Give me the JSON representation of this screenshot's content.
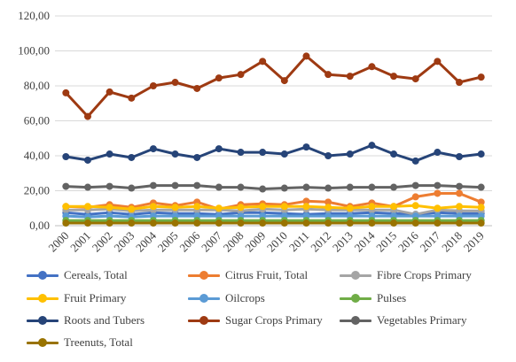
{
  "chart_data": {
    "type": "line",
    "title": "",
    "xlabel": "",
    "ylabel": "",
    "categories": [
      "2000",
      "2001",
      "2002",
      "2003",
      "2004",
      "2005",
      "2006",
      "2007",
      "2008",
      "2009",
      "2010",
      "2011",
      "2012",
      "2013",
      "2014",
      "2015",
      "2016",
      "2017",
      "2018",
      "2019"
    ],
    "ylim": [
      0,
      120
    ],
    "yticks": [
      "0,00",
      "20,00",
      "40,00",
      "60,00",
      "80,00",
      "100,00",
      "120,00"
    ],
    "grid": "horizontal",
    "legend_position": "bottom",
    "series": [
      {
        "name": "Cereals, Total",
        "color": "#4472C4",
        "values": [
          7.5,
          6.5,
          7.5,
          6.5,
          7.5,
          7.0,
          7.0,
          6.5,
          7.5,
          7.5,
          7.0,
          6.5,
          7.0,
          7.0,
          7.5,
          7.0,
          6.5,
          7.5,
          7.0,
          7.0
        ]
      },
      {
        "name": "Citrus Fruit, Total",
        "color": "#ED7D31",
        "values": [
          11.0,
          10.5,
          12.0,
          10.5,
          13.0,
          11.5,
          13.5,
          9.5,
          12.0,
          12.5,
          12.0,
          14.0,
          13.5,
          11.0,
          13.0,
          11.0,
          16.5,
          18.5,
          18.5,
          13.5
        ]
      },
      {
        "name": "Fibre Crops Primary",
        "color": "#A5A5A5",
        "values": [
          9.0,
          9.0,
          9.5,
          8.5,
          9.0,
          9.0,
          9.0,
          9.0,
          8.5,
          9.5,
          9.0,
          9.5,
          9.0,
          9.0,
          9.0,
          9.0,
          6.5,
          9.0,
          8.5,
          8.5
        ]
      },
      {
        "name": "Fruit Primary",
        "color": "#FFC000",
        "values": [
          11.0,
          11.0,
          10.5,
          9.5,
          11.0,
          10.5,
          11.0,
          10.0,
          10.5,
          11.0,
          11.0,
          11.0,
          10.5,
          10.0,
          11.0,
          11.0,
          11.5,
          10.0,
          11.0,
          10.5
        ]
      },
      {
        "name": "Oilcrops",
        "color": "#5B9BD5",
        "values": [
          5.5,
          5.0,
          5.5,
          5.0,
          5.5,
          5.5,
          5.5,
          5.5,
          5.5,
          5.5,
          5.5,
          5.5,
          5.5,
          5.5,
          5.5,
          5.5,
          5.5,
          5.5,
          5.5,
          5.5
        ]
      },
      {
        "name": "Pulses",
        "color": "#70AD47",
        "values": [
          3.0,
          3.0,
          3.0,
          3.0,
          3.0,
          3.0,
          3.0,
          3.0,
          3.0,
          3.0,
          3.0,
          3.0,
          3.0,
          3.0,
          3.0,
          3.0,
          3.0,
          3.0,
          3.0,
          3.0
        ]
      },
      {
        "name": "Roots and Tubers",
        "color": "#264478",
        "values": [
          39.5,
          37.5,
          41.0,
          39.0,
          44.0,
          41.0,
          39.0,
          44.0,
          42.0,
          42.0,
          41.0,
          45.0,
          40.0,
          41.0,
          46.0,
          41.0,
          37.0,
          42.0,
          39.5,
          41.0
        ]
      },
      {
        "name": "Sugar Crops Primary",
        "color": "#9E3A12",
        "values": [
          76.0,
          62.5,
          76.5,
          73.0,
          80.0,
          82.0,
          78.5,
          84.5,
          86.5,
          94.0,
          83.0,
          97.0,
          86.5,
          85.5,
          91.0,
          85.5,
          84.0,
          94.0,
          82.0,
          85.0
        ]
      },
      {
        "name": "Vegetables Primary",
        "color": "#636363",
        "values": [
          22.5,
          22.0,
          22.5,
          21.5,
          23.0,
          23.0,
          23.0,
          22.0,
          22.0,
          21.0,
          21.5,
          22.0,
          21.5,
          22.0,
          22.0,
          22.0,
          23.0,
          23.0,
          22.5,
          22.0
        ]
      },
      {
        "name": "Treenuts, Total",
        "color": "#997300",
        "values": [
          1.5,
          1.5,
          1.5,
          1.5,
          1.5,
          1.5,
          1.5,
          1.5,
          1.5,
          1.5,
          1.5,
          1.5,
          1.5,
          1.5,
          1.5,
          1.5,
          1.5,
          1.5,
          1.5,
          1.5
        ]
      }
    ]
  }
}
